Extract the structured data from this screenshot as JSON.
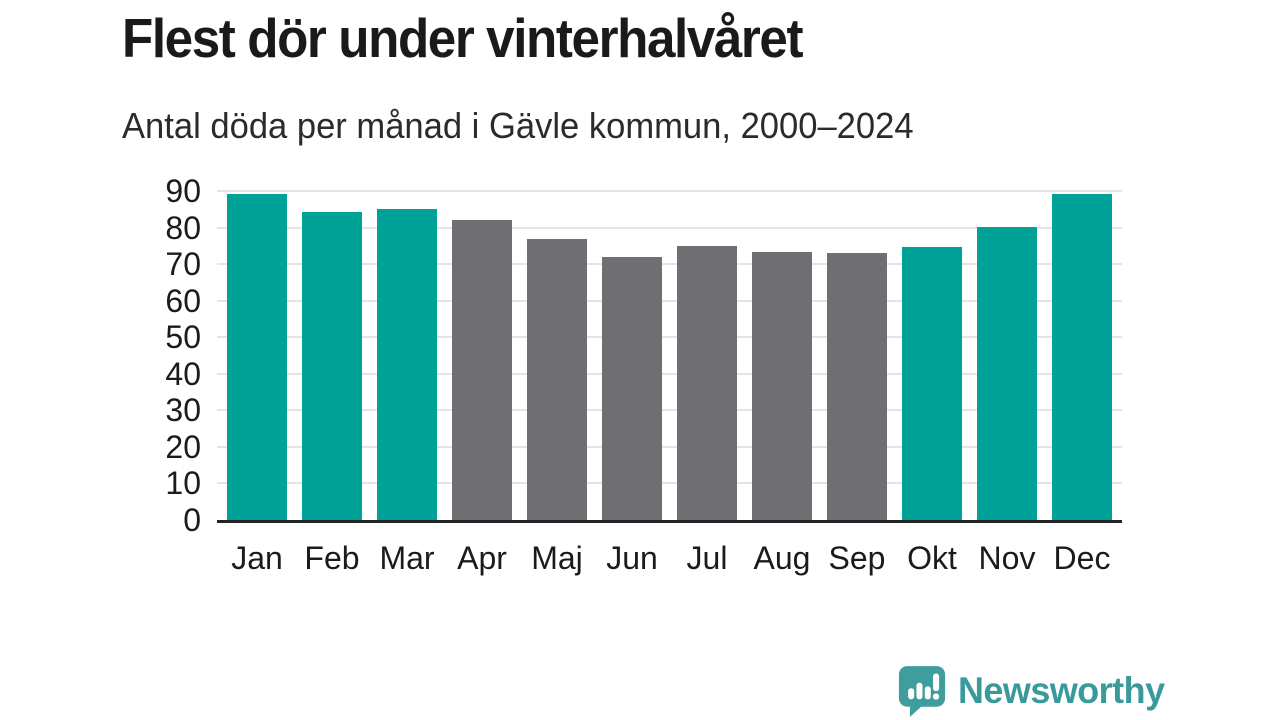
{
  "header": {
    "title": "Flest dör under vinterhalvåret",
    "subtitle": "Antal döda per månad i Gävle kommun, 2000–2024"
  },
  "chart_data": {
    "type": "bar",
    "title": "Flest dör under vinterhalvåret",
    "subtitle": "Antal döda per månad i Gävle kommun, 2000–2024",
    "categories": [
      "Jan",
      "Feb",
      "Mar",
      "Apr",
      "Maj",
      "Jun",
      "Jul",
      "Aug",
      "Sep",
      "Okt",
      "Nov",
      "Dec"
    ],
    "values": [
      89.2,
      84.3,
      85.0,
      82.2,
      76.9,
      71.9,
      75.0,
      73.4,
      73.1,
      74.6,
      80.1,
      89.3
    ],
    "bar_colors": [
      "winter",
      "winter",
      "winter",
      "summer",
      "summer",
      "summer",
      "summer",
      "summer",
      "summer",
      "winter",
      "winter",
      "winter"
    ],
    "palette": {
      "winter": "#00a298",
      "summer": "#6e6e73"
    },
    "xlabel": "",
    "ylabel": "",
    "ylim": [
      0,
      90
    ],
    "ytick_step": 10,
    "yticks": [
      0,
      10,
      20,
      30,
      40,
      50,
      60,
      70,
      80,
      90
    ],
    "grid": "horizontal",
    "gridline_color": "#e4e4e4",
    "axis_color": "#222222",
    "legend": "none"
  },
  "footer": {
    "brand": "Newsworthy",
    "brand_color": "#399a9b",
    "logo_color": "#3f9e9d",
    "logo_icon": "speech-bubble-bar-chart-exclamation"
  }
}
